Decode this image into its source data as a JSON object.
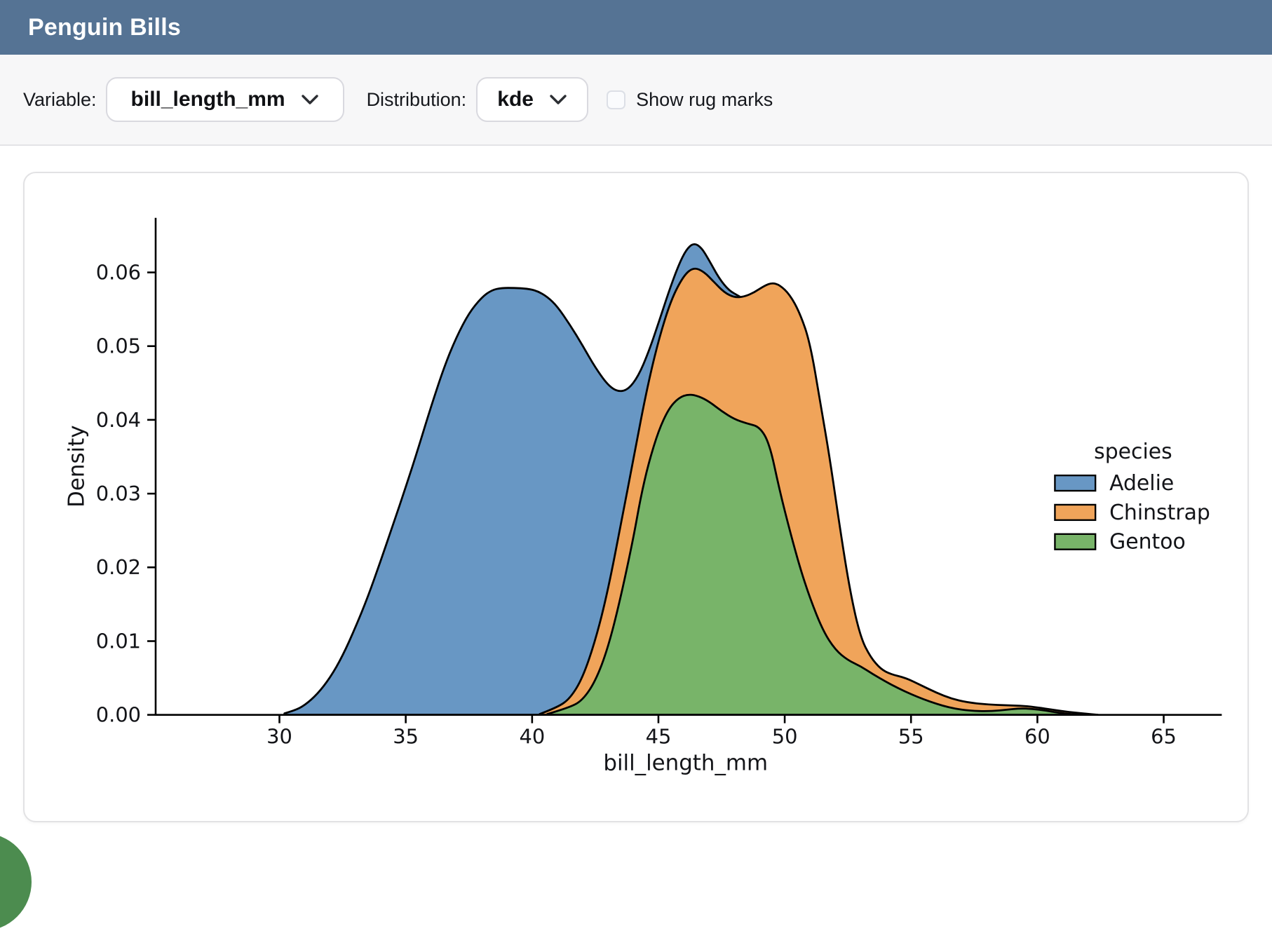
{
  "header": {
    "title": "Penguin Bills"
  },
  "toolbar": {
    "variable_label": "Variable:",
    "variable_value": "bill_length_mm",
    "distribution_label": "Distribution:",
    "distribution_value": "kde",
    "rug_label": "Show rug marks",
    "rug_checked": false
  },
  "colors": {
    "header_bg": "#557394",
    "toolbar_bg": "#f7f7f8",
    "card_border": "#e2e2e4",
    "corner_blob": "#4c8c4f",
    "curve_outline": "#000000",
    "adelie": "#6897c4",
    "chinstrap": "#f0a45a",
    "gentoo": "#78b469"
  },
  "chart_data": {
    "type": "area",
    "title": "",
    "xlabel": "bill_length_mm",
    "ylabel": "Density",
    "xlim": [
      25.1,
      67.3
    ],
    "ylim": [
      0,
      0.0674
    ],
    "xticks": [
      30,
      35,
      40,
      45,
      50,
      55,
      60,
      65
    ],
    "yticks": [
      0,
      0.01,
      0.02,
      0.03,
      0.04,
      0.05,
      0.06
    ],
    "grid": false,
    "legend": {
      "title": "species",
      "position": "right"
    },
    "series": [
      {
        "name": "Adelie",
        "color": "#6897c4",
        "points": [
          [
            30.2,
            0.0002
          ],
          [
            30.6,
            0.0006
          ],
          [
            31,
            0.0013
          ],
          [
            31.5,
            0.0028
          ],
          [
            32,
            0.005
          ],
          [
            32.5,
            0.008
          ],
          [
            33,
            0.0118
          ],
          [
            33.5,
            0.016
          ],
          [
            34,
            0.0208
          ],
          [
            34.5,
            0.0258
          ],
          [
            35,
            0.0309
          ],
          [
            35.5,
            0.0362
          ],
          [
            36,
            0.0418
          ],
          [
            36.5,
            0.047
          ],
          [
            37,
            0.0512
          ],
          [
            37.5,
            0.0545
          ],
          [
            38,
            0.0566
          ],
          [
            38.4,
            0.0576
          ],
          [
            38.8,
            0.0579
          ],
          [
            39.3,
            0.0579
          ],
          [
            39.8,
            0.0578
          ],
          [
            40.2,
            0.0575
          ],
          [
            40.6,
            0.0567
          ],
          [
            41,
            0.0554
          ],
          [
            41.5,
            0.0529
          ],
          [
            42,
            0.0501
          ],
          [
            42.5,
            0.0471
          ],
          [
            43,
            0.0447
          ],
          [
            43.4,
            0.0438
          ],
          [
            43.8,
            0.0441
          ],
          [
            44.2,
            0.0459
          ],
          [
            44.6,
            0.0491
          ],
          [
            45,
            0.0531
          ],
          [
            45.4,
            0.0573
          ],
          [
            45.8,
            0.061
          ],
          [
            46.1,
            0.0631
          ],
          [
            46.4,
            0.064
          ],
          [
            46.7,
            0.0634
          ],
          [
            47,
            0.0617
          ],
          [
            47.4,
            0.0592
          ],
          [
            47.8,
            0.0575
          ],
          [
            48.2,
            0.0568
          ],
          [
            48.6,
            0.0558
          ],
          [
            49,
            0.0525
          ],
          [
            49.4,
            0.047
          ],
          [
            49.8,
            0.04
          ],
          [
            50.2,
            0.0325
          ],
          [
            50.6,
            0.025
          ],
          [
            51,
            0.018
          ],
          [
            51.5,
            0.011
          ],
          [
            52,
            0.006
          ],
          [
            52.5,
            0.003
          ],
          [
            53,
            0.0012
          ],
          [
            53.5,
            0.0004
          ],
          [
            54,
            0
          ]
        ]
      },
      {
        "name": "Chinstrap",
        "color": "#f0a45a",
        "points": [
          [
            40.3,
            0.0001
          ],
          [
            41,
            0.001
          ],
          [
            41.5,
            0.0022
          ],
          [
            42,
            0.005
          ],
          [
            42.5,
            0.01
          ],
          [
            43,
            0.0168
          ],
          [
            43.55,
            0.0265
          ],
          [
            44,
            0.0345
          ],
          [
            44.5,
            0.0435
          ],
          [
            45,
            0.0508
          ],
          [
            45.5,
            0.0563
          ],
          [
            46,
            0.0596
          ],
          [
            46.4,
            0.0607
          ],
          [
            46.8,
            0.0601
          ],
          [
            47.2,
            0.0587
          ],
          [
            47.6,
            0.0573
          ],
          [
            48,
            0.0566
          ],
          [
            48.4,
            0.0567
          ],
          [
            48.8,
            0.0573
          ],
          [
            49.2,
            0.0582
          ],
          [
            49.5,
            0.0586
          ],
          [
            49.8,
            0.0583
          ],
          [
            50.2,
            0.057
          ],
          [
            50.6,
            0.0545
          ],
          [
            51,
            0.0505
          ],
          [
            51.4,
            0.0425
          ],
          [
            51.8,
            0.0345
          ],
          [
            52.2,
            0.025
          ],
          [
            52.6,
            0.0165
          ],
          [
            53,
            0.0105
          ],
          [
            53.4,
            0.0078
          ],
          [
            53.8,
            0.0062
          ],
          [
            54.2,
            0.0055
          ],
          [
            54.8,
            0.005
          ],
          [
            55.4,
            0.004
          ],
          [
            56,
            0.003
          ],
          [
            56.6,
            0.0022
          ],
          [
            57.2,
            0.0017
          ],
          [
            58,
            0.0014
          ],
          [
            58.8,
            0.0013
          ],
          [
            59.5,
            0.0012
          ],
          [
            60,
            0.001
          ],
          [
            60.6,
            0.0007
          ],
          [
            61.2,
            0.0004
          ],
          [
            61.8,
            0.0002
          ],
          [
            62.4,
            0
          ]
        ]
      },
      {
        "name": "Gentoo",
        "color": "#78b469",
        "points": [
          [
            40.6,
            0.0001
          ],
          [
            41.5,
            0.001
          ],
          [
            42,
            0.002
          ],
          [
            42.5,
            0.0045
          ],
          [
            43,
            0.009
          ],
          [
            43.5,
            0.0158
          ],
          [
            44,
            0.0238
          ],
          [
            44.3,
            0.0295
          ],
          [
            44.6,
            0.034
          ],
          [
            45,
            0.0385
          ],
          [
            45.4,
            0.0415
          ],
          [
            45.8,
            0.043
          ],
          [
            46.2,
            0.0435
          ],
          [
            46.6,
            0.0432
          ],
          [
            47,
            0.0425
          ],
          [
            47.5,
            0.0412
          ],
          [
            48,
            0.0401
          ],
          [
            48.5,
            0.0395
          ],
          [
            49,
            0.0391
          ],
          [
            49.4,
            0.0368
          ],
          [
            49.8,
            0.0304
          ],
          [
            50.2,
            0.025
          ],
          [
            50.6,
            0.02
          ],
          [
            51,
            0.0158
          ],
          [
            51.5,
            0.0115
          ],
          [
            52,
            0.0088
          ],
          [
            52.5,
            0.0074
          ],
          [
            53,
            0.0066
          ],
          [
            53.5,
            0.0055
          ],
          [
            54,
            0.0045
          ],
          [
            54.5,
            0.0036
          ],
          [
            55,
            0.0028
          ],
          [
            55.5,
            0.0021
          ],
          [
            56,
            0.0015
          ],
          [
            56.5,
            0.001
          ],
          [
            57,
            0.0007
          ],
          [
            57.6,
            0.0005
          ],
          [
            58.2,
            0.0005
          ],
          [
            58.8,
            0.0007
          ],
          [
            59.3,
            0.00088
          ],
          [
            59.8,
            0.0008
          ],
          [
            60.3,
            0.0006
          ],
          [
            60.8,
            0.0003
          ],
          [
            61.3,
            0.0001
          ],
          [
            61.8,
            0
          ]
        ]
      }
    ]
  }
}
